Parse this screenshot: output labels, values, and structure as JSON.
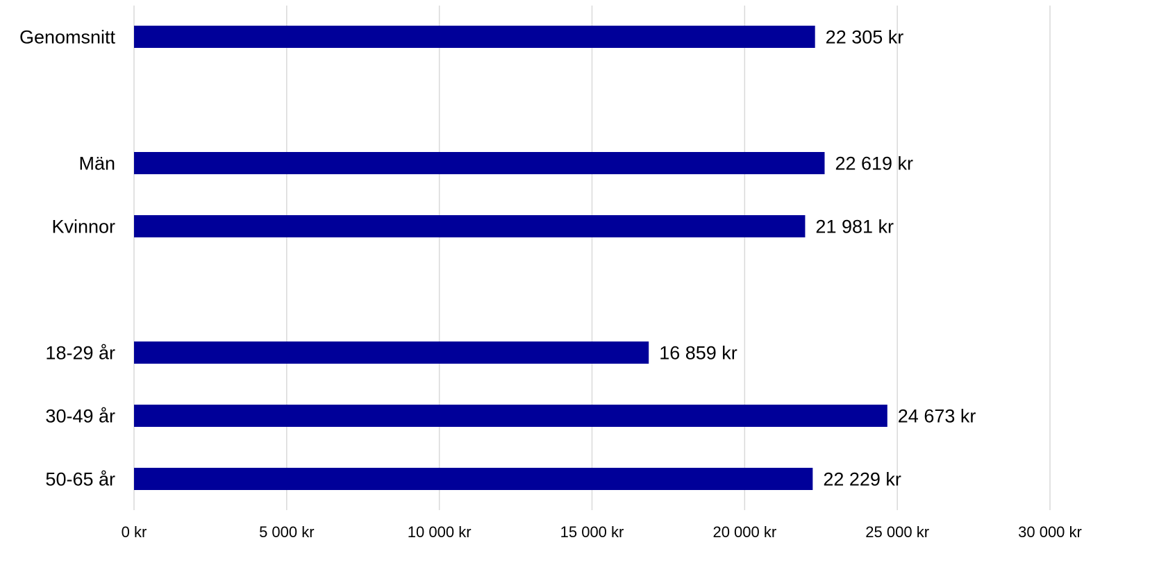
{
  "chart_data": {
    "type": "bar",
    "orientation": "horizontal",
    "categories": [
      "Genomsnitt",
      "Män",
      "Kvinnor",
      "18-29 år",
      "30-49 år",
      "50-65 år"
    ],
    "values": [
      22305,
      22619,
      21981,
      16859,
      24673,
      22229
    ],
    "value_labels": [
      "22 305 kr",
      "22 619 kr",
      "21 981 kr",
      "16 859 kr",
      "24 673 kr",
      "22 229 kr"
    ],
    "groups": [
      [
        0
      ],
      [
        1,
        2
      ],
      [
        3,
        4,
        5
      ]
    ],
    "x_ticks": [
      0,
      5000,
      10000,
      15000,
      20000,
      25000,
      30000
    ],
    "x_tick_labels": [
      "0 kr",
      "5 000 kr",
      "10 000 kr",
      "15 000 kr",
      "20 000 kr",
      "25 000 kr",
      "30 000 kr"
    ],
    "xlim": [
      0,
      30000
    ],
    "grid": "vertical",
    "legend": "none",
    "bar_color": "#000099",
    "grid_color": "#d9d9d9"
  }
}
